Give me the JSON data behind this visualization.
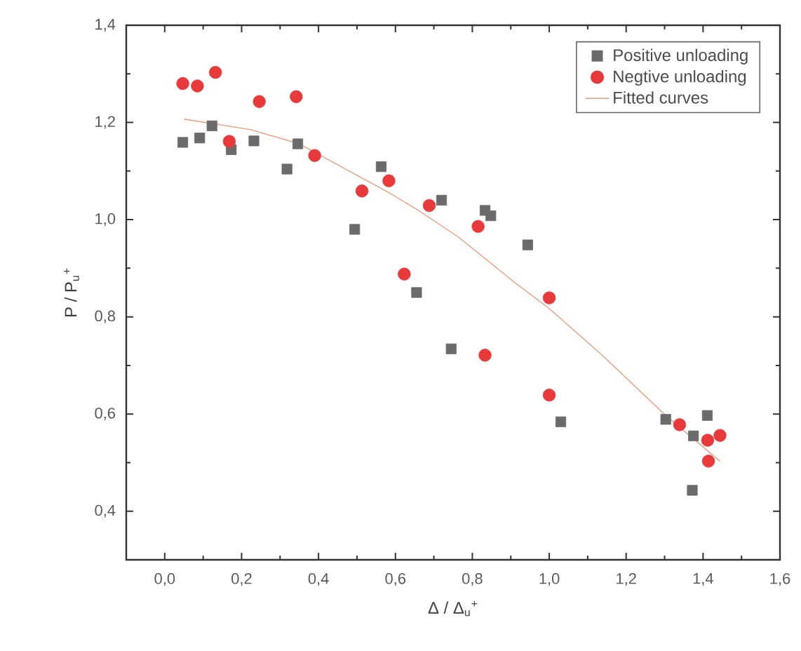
{
  "chart_data": {
    "type": "scatter",
    "xlabel": "Δ / Δ$_{u}$$^{+}$",
    "ylabel": "P / P$_{u}$$^{+}$",
    "xlim": [
      -0.1,
      1.6
    ],
    "ylim": [
      0.3,
      1.4
    ],
    "xticks": [
      {
        "value": 0,
        "label": "0,0"
      },
      {
        "value": 0.2,
        "label": "0,2"
      },
      {
        "value": 0.4,
        "label": "0,4"
      },
      {
        "value": 0.6,
        "label": "0,6"
      },
      {
        "value": 0.8,
        "label": "0,8"
      },
      {
        "value": 1.0,
        "label": "1,0"
      },
      {
        "value": 1.2,
        "label": "1,2"
      },
      {
        "value": 1.4,
        "label": "1,4"
      },
      {
        "value": 1.6,
        "label": "1,6"
      }
    ],
    "yticks": [
      {
        "value": 0.4,
        "label": "0,4"
      },
      {
        "value": 0.6,
        "label": "0,6"
      },
      {
        "value": 0.8,
        "label": "0,8"
      },
      {
        "value": 1.0,
        "label": "1,0"
      },
      {
        "value": 1.2,
        "label": "1,2"
      },
      {
        "value": 1.4,
        "label": "1,4"
      }
    ],
    "grid": false,
    "legend": "top right",
    "series": [
      {
        "name": "Positive unloading",
        "marker": "square",
        "color": "#6b6b6b",
        "x": [
          0.047,
          0.091,
          0.123,
          0.173,
          0.232,
          0.318,
          0.346,
          0.494,
          0.563,
          0.655,
          0.72,
          0.745,
          0.833,
          0.848,
          0.944,
          1.03,
          1.303,
          1.375,
          1.411,
          1.372
        ],
        "values": [
          1.159,
          1.168,
          1.193,
          1.144,
          1.162,
          1.104,
          1.156,
          0.98,
          1.109,
          0.85,
          1.04,
          0.734,
          1.019,
          1.008,
          0.948,
          0.584,
          0.589,
          0.555,
          0.597,
          0.443
        ]
      },
      {
        "name": "Negtive unloading",
        "marker": "circle",
        "color": "#e8393b",
        "x": [
          0.047,
          0.085,
          0.132,
          0.168,
          0.246,
          0.342,
          0.39,
          0.513,
          0.583,
          0.623,
          0.688,
          0.815,
          0.833,
          1.0,
          1.0,
          1.339,
          1.412,
          1.444,
          1.414
        ],
        "values": [
          1.28,
          1.275,
          1.303,
          1.161,
          1.243,
          1.253,
          1.132,
          1.059,
          1.08,
          0.888,
          1.029,
          0.986,
          0.721,
          0.839,
          0.639,
          0.578,
          0.546,
          0.556,
          0.503
        ]
      },
      {
        "name": "Fitted curves",
        "type": "line",
        "marker": "none",
        "line_style": "solid",
        "color": "#f29a7c",
        "x": [
          0.05,
          0.224,
          0.35,
          0.584,
          0.656,
          0.764,
          0.908,
          0.997,
          1.135,
          1.303,
          1.444
        ],
        "values": [
          1.207,
          1.185,
          1.156,
          1.055,
          1.021,
          0.964,
          0.872,
          0.819,
          0.723,
          0.597,
          0.503
        ]
      }
    ]
  }
}
